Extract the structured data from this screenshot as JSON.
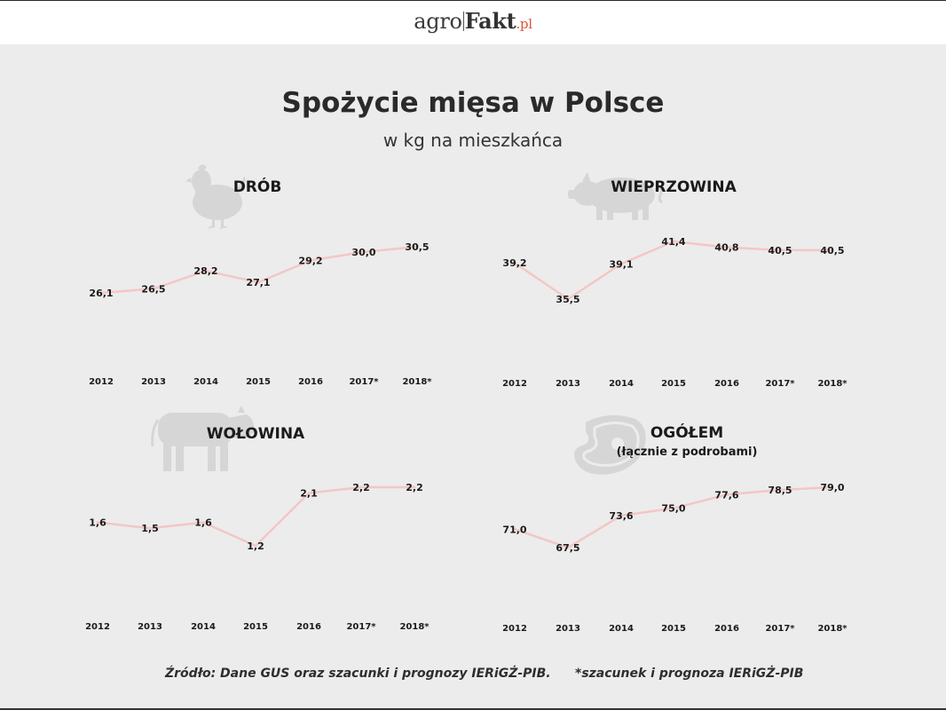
{
  "header": {
    "logo_agro": "agro",
    "logo_fakt": "Fakt",
    "logo_pl": ".pl"
  },
  "title": "Spożycie mięsa w Polsce",
  "subtitle": "w kg na mieszkańca",
  "line_color": "#f4c6c6",
  "chart_data": [
    {
      "type": "line",
      "title": "DRÓB",
      "icon": "chicken-icon",
      "categories": [
        "2012",
        "2013",
        "2014",
        "2015",
        "2016",
        "2017*",
        "2018*"
      ],
      "values": [
        26.1,
        26.5,
        28.2,
        27.1,
        29.2,
        30.0,
        30.5
      ],
      "labels": [
        "26,1",
        "26,5",
        "28,2",
        "27,1",
        "29,2",
        "30,0",
        "30,5"
      ]
    },
    {
      "type": "line",
      "title": "WIEPRZOWINA",
      "icon": "pig-icon",
      "categories": [
        "2012",
        "2013",
        "2014",
        "2015",
        "2016",
        "2017*",
        "2018*"
      ],
      "values": [
        39.2,
        35.5,
        39.1,
        41.4,
        40.8,
        40.5,
        40.5
      ],
      "labels": [
        "39,2",
        "35,5",
        "39,1",
        "41,4",
        "40,8",
        "40,5",
        "40,5"
      ]
    },
    {
      "type": "line",
      "title": "WOŁOWINA",
      "icon": "cow-icon",
      "categories": [
        "2012",
        "2013",
        "2014",
        "2015",
        "2016",
        "2017*",
        "2018*"
      ],
      "values": [
        1.6,
        1.5,
        1.6,
        1.2,
        2.1,
        2.2,
        2.2
      ],
      "labels": [
        "1,6",
        "1,5",
        "1,6",
        "1,2",
        "2,1",
        "2,2",
        "2,2"
      ]
    },
    {
      "type": "line",
      "title": "OGÓŁEM",
      "subtitle": "(łącznie z podrobami)",
      "icon": "steak-icon",
      "categories": [
        "2012",
        "2013",
        "2014",
        "2015",
        "2016",
        "2017*",
        "2018*"
      ],
      "values": [
        71.0,
        67.5,
        73.6,
        75.0,
        77.6,
        78.5,
        79.0
      ],
      "labels": [
        "71,0",
        "67,5",
        "73,6",
        "75,0",
        "77,6",
        "78,5",
        "79,0"
      ]
    }
  ],
  "footer": {
    "source": "Źródło: Dane GUS oraz szacunki i prognozy IERiGŻ-PIB.",
    "note": "*szacunek i prognoza IERiGŻ-PIB"
  }
}
